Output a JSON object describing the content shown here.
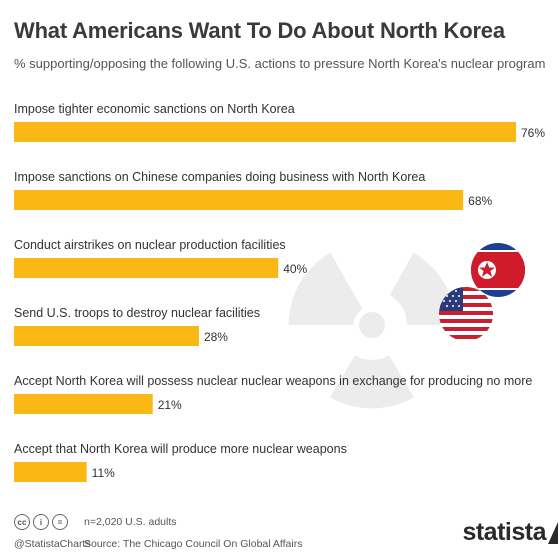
{
  "header": {
    "title": "What Americans Want To Do About North Korea",
    "subtitle": "% supporting/opposing the following U.S. actions to pressure North Korea's nuclear program"
  },
  "colors": {
    "bar": "#fbb713",
    "text": "#333333",
    "watermark": "#ececec"
  },
  "chart_data": {
    "type": "bar",
    "orientation": "horizontal",
    "categories": [
      "Impose tighter economic sanctions on North Korea",
      "Impose sanctions on Chinese companies doing business with North Korea",
      "Conduct airstrikes on nuclear production facilities",
      "Send U.S. troops to destroy nuclear facilities",
      "Accept North Korea will possess nuclear nuclear weapons in exchange for producing no more",
      "Accept that North Korea will produce more nuclear weapons"
    ],
    "values": [
      76,
      68,
      40,
      28,
      21,
      11
    ],
    "value_labels": [
      "76%",
      "68%",
      "40%",
      "28%",
      "21%",
      "11%"
    ],
    "unit": "%",
    "xlim": [
      0,
      76
    ],
    "grid": false,
    "legend": "none"
  },
  "footer": {
    "cc_icons": [
      "cc-icon",
      "by-icon",
      "nd-icon"
    ],
    "cc_symbols": [
      "cc",
      "i",
      "="
    ],
    "handle": "@StatistaCharts",
    "note": "n=2,020 U.S. adults",
    "source": "Source: The Chicago Council On Global Affairs",
    "brand": "statista"
  }
}
